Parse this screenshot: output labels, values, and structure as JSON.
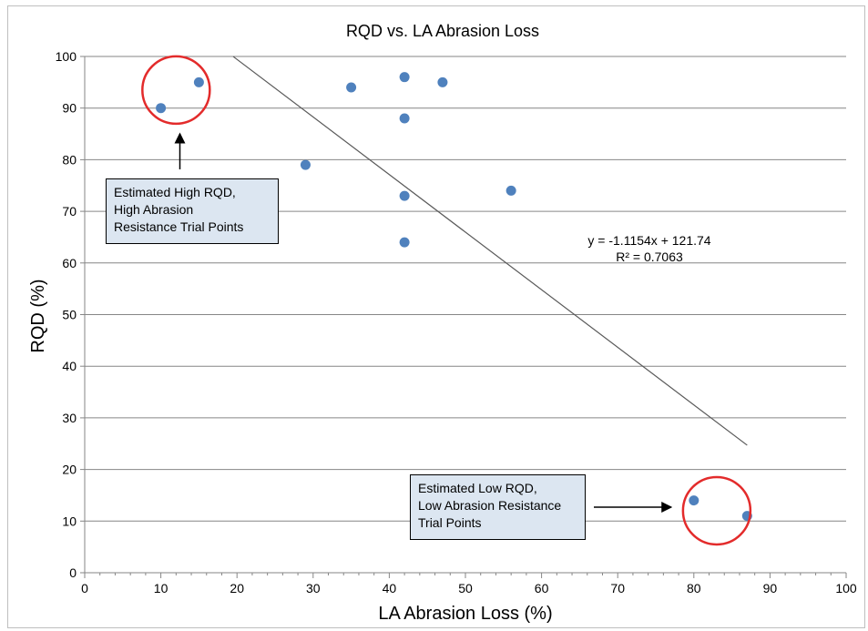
{
  "chart_data": {
    "type": "scatter",
    "title": "RQD vs. LA Abrasion Loss",
    "xlabel": "LA Abrasion Loss (%)",
    "ylabel": "RQD (%)",
    "xlim": [
      0,
      100
    ],
    "ylim": [
      0,
      100
    ],
    "xticks": [
      0,
      10,
      20,
      30,
      40,
      50,
      60,
      70,
      80,
      90,
      100
    ],
    "yticks": [
      0,
      10,
      20,
      30,
      40,
      50,
      60,
      70,
      80,
      90,
      100
    ],
    "grid": "horizontal",
    "series": [
      {
        "color": "#4f81bd",
        "points": [
          {
            "x": 10,
            "y": 90
          },
          {
            "x": 15,
            "y": 95
          },
          {
            "x": 29,
            "y": 79
          },
          {
            "x": 35,
            "y": 94
          },
          {
            "x": 42,
            "y": 96
          },
          {
            "x": 42,
            "y": 88
          },
          {
            "x": 42,
            "y": 73
          },
          {
            "x": 42,
            "y": 64
          },
          {
            "x": 47,
            "y": 95
          },
          {
            "x": 56,
            "y": 74
          },
          {
            "x": 80,
            "y": 14
          },
          {
            "x": 87,
            "y": 11
          }
        ]
      }
    ],
    "trendline": {
      "slope": -1.1154,
      "intercept": 121.74,
      "x_range": [
        19.5,
        87
      ],
      "equation": "y = -1.1154x + 121.74",
      "r2_label": "R² = 0.7063",
      "color": "#595959"
    },
    "annotations": [
      {
        "text": "Estimated High RQD,\nHigh Abrasion\nResistance Trial Points",
        "circle_center": {
          "x": 12,
          "y": 93.5
        },
        "arrow_target": {
          "x": 12.5,
          "y": 85
        }
      },
      {
        "text": "Estimated Low RQD,\nLow Abrasion Resistance\nTrial Points",
        "circle_center": {
          "x": 83,
          "y": 12
        },
        "arrow_target": {
          "x": 77,
          "y": 13
        }
      }
    ],
    "highlight_color": "#e32b2b",
    "annotation_fill": "#dce6f1"
  }
}
